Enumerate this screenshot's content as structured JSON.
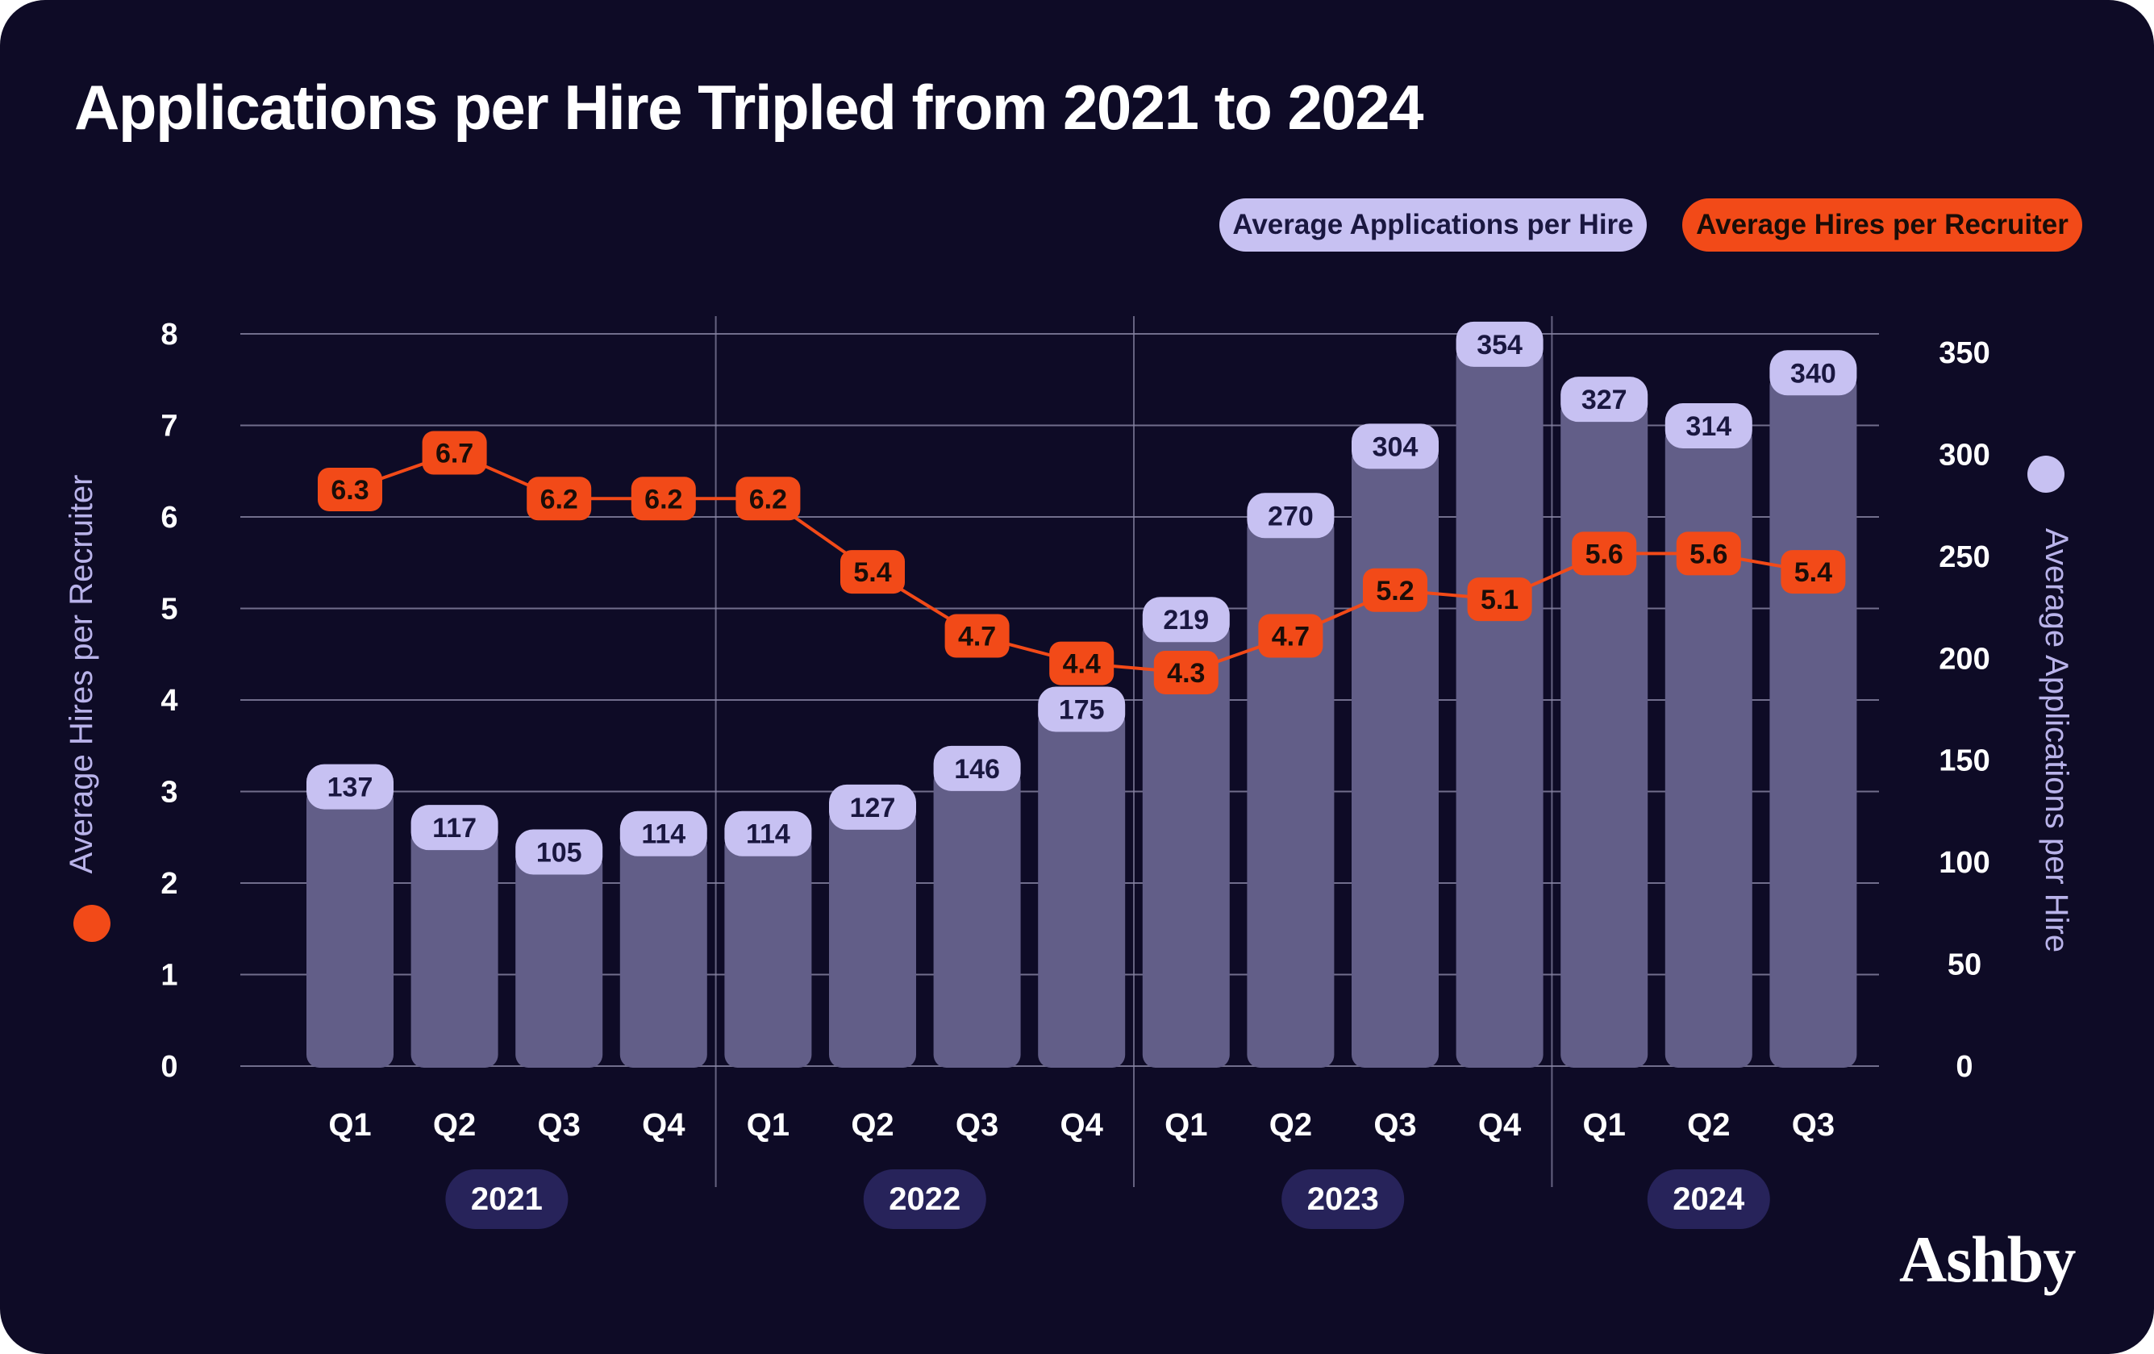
{
  "title": "Applications per Hire Tripled from 2021 to 2024",
  "brand": "Ashby",
  "colors": {
    "background": "#0e0b26",
    "bar": "#625e88",
    "bar_label_bg": "#c7c1f2",
    "line": "#f24a18",
    "grid": "#8a87a6",
    "year_pill": "#27235a"
  },
  "chart_data": {
    "type": "bar",
    "categories": [
      "Q1",
      "Q2",
      "Q3",
      "Q4",
      "Q1",
      "Q2",
      "Q3",
      "Q4",
      "Q1",
      "Q2",
      "Q3",
      "Q4",
      "Q1",
      "Q2",
      "Q3"
    ],
    "years": [
      {
        "label": "2021",
        "quarters": 4
      },
      {
        "label": "2022",
        "quarters": 4
      },
      {
        "label": "2023",
        "quarters": 4
      },
      {
        "label": "2024",
        "quarters": 3
      }
    ],
    "series": [
      {
        "name": "Average Applications per Hire",
        "type": "bar",
        "axis": "right",
        "values": [
          137,
          117,
          105,
          114,
          114,
          127,
          146,
          175,
          219,
          270,
          304,
          354,
          327,
          314,
          340
        ]
      },
      {
        "name": "Average Hires per Recruiter",
        "type": "line",
        "axis": "left",
        "values": [
          6.3,
          6.7,
          6.2,
          6.2,
          6.2,
          5.4,
          4.7,
          4.4,
          4.3,
          4.7,
          5.2,
          5.1,
          5.6,
          5.6,
          5.4
        ]
      }
    ],
    "y_left": {
      "label": "Average Hires per Recruiter",
      "range": [
        0,
        8
      ],
      "ticks": [
        "0",
        "1",
        "2",
        "3",
        "4",
        "5",
        "6",
        "7",
        "8"
      ]
    },
    "y_right": {
      "label": "Average Applications per Hire",
      "range": [
        0,
        360
      ],
      "ticks": [
        "0",
        "50",
        "100",
        "150",
        "200",
        "250",
        "300",
        "350"
      ]
    },
    "grid": true,
    "legend_position": "top-right"
  }
}
